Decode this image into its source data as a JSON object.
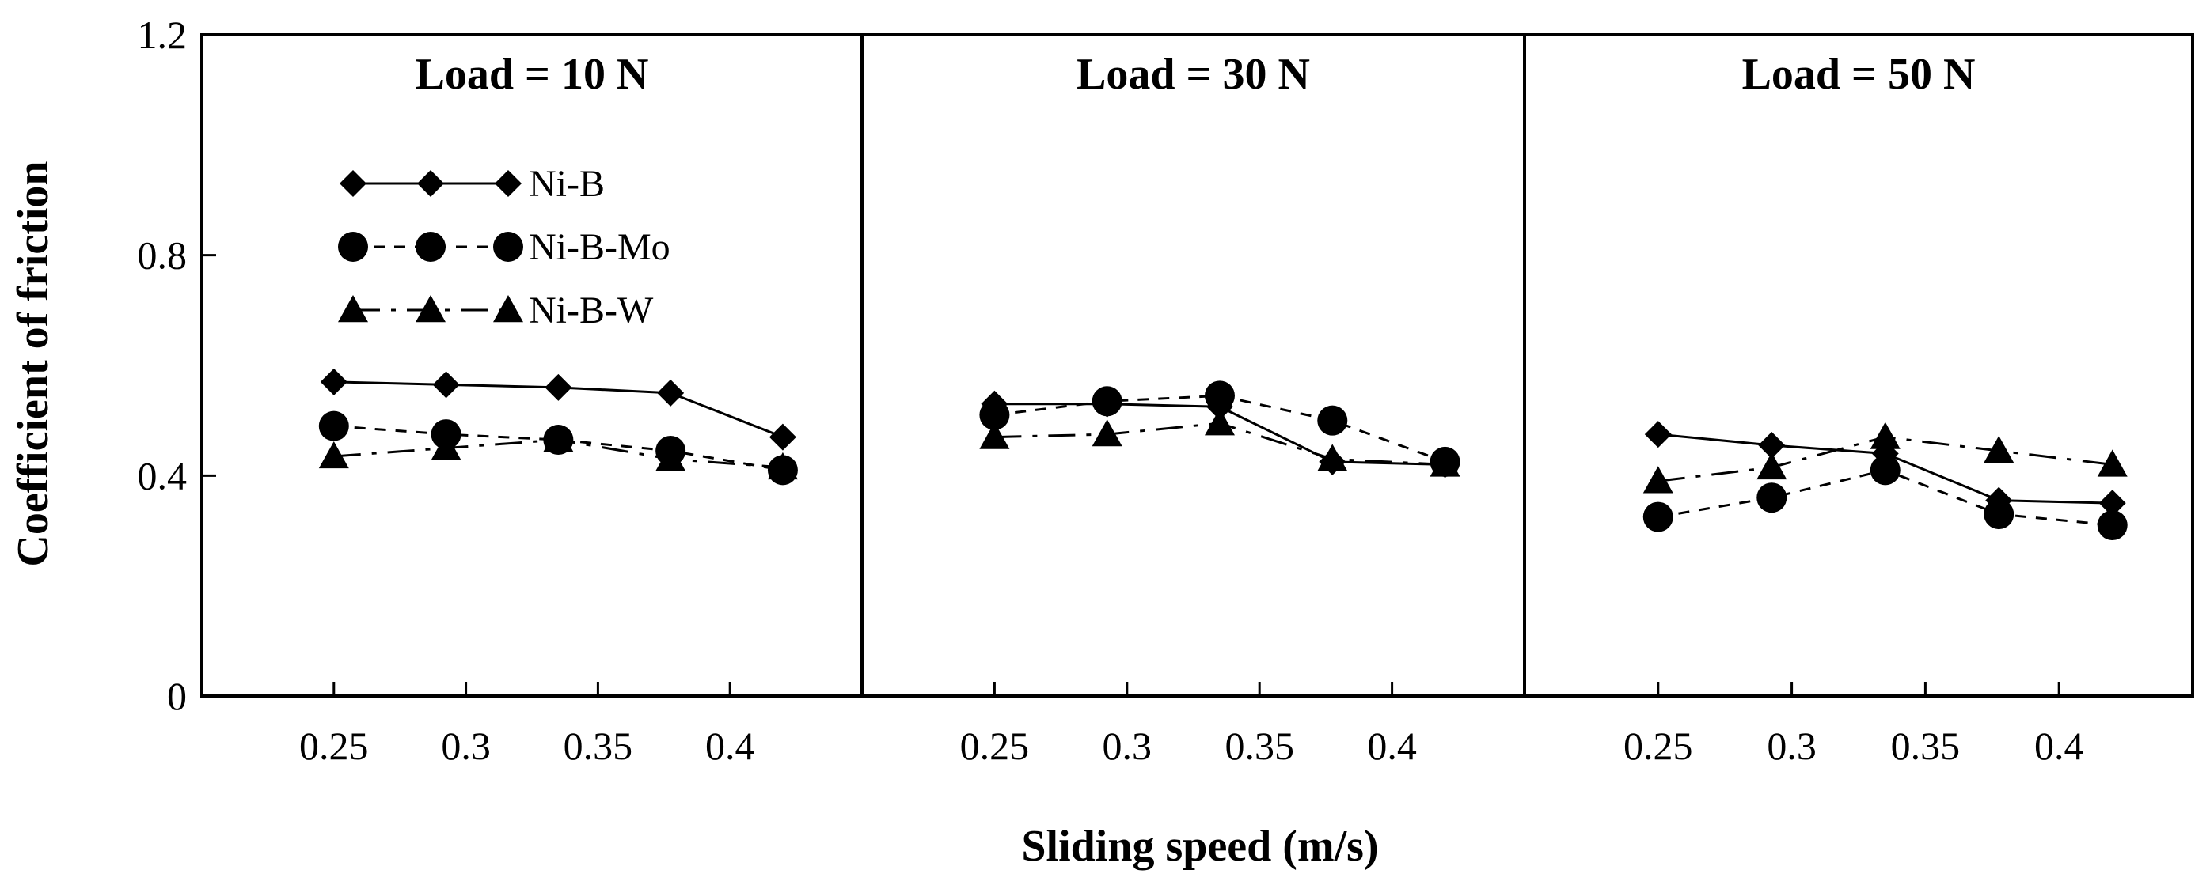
{
  "chart_data": {
    "type": "line",
    "ylabel": "Coefficient of friction",
    "xlabel": "Sliding speed (m/s)",
    "ylim": [
      0,
      1.2
    ],
    "yticks": [
      "0",
      "0.4",
      "0.8",
      "1.2"
    ],
    "xticks": [
      "0.25",
      "0.3",
      "0.35",
      "0.4"
    ],
    "legend": [
      "Ni-B",
      "Ni-B-Mo",
      "Ni-B-W"
    ],
    "panels": [
      {
        "title": "Load = 10 N",
        "x": [
          0.25,
          0.2925,
          0.335,
          0.3775,
          0.42
        ],
        "series": [
          {
            "name": "Ni-B",
            "values": [
              0.57,
              0.565,
              0.56,
              0.55,
              0.47
            ]
          },
          {
            "name": "Ni-B-Mo",
            "values": [
              0.49,
              0.475,
              0.465,
              0.445,
              0.41
            ]
          },
          {
            "name": "Ni-B-W",
            "values": [
              0.435,
              0.45,
              0.465,
              0.43,
              0.415
            ]
          }
        ]
      },
      {
        "title": "Load = 30 N",
        "x": [
          0.25,
          0.2925,
          0.335,
          0.3775,
          0.42
        ],
        "series": [
          {
            "name": "Ni-B",
            "values": [
              0.53,
              0.53,
              0.525,
              0.425,
              0.42
            ]
          },
          {
            "name": "Ni-B-Mo",
            "values": [
              0.51,
              0.535,
              0.545,
              0.5,
              0.425
            ]
          },
          {
            "name": "Ni-B-W",
            "values": [
              0.47,
              0.475,
              0.495,
              0.43,
              0.42
            ]
          }
        ]
      },
      {
        "title": "Load = 50 N",
        "x": [
          0.25,
          0.2925,
          0.335,
          0.3775,
          0.42
        ],
        "series": [
          {
            "name": "Ni-B",
            "values": [
              0.475,
              0.455,
              0.44,
              0.355,
              0.35
            ]
          },
          {
            "name": "Ni-B-Mo",
            "values": [
              0.325,
              0.36,
              0.41,
              0.33,
              0.31
            ]
          },
          {
            "name": "Ni-B-W",
            "values": [
              0.39,
              0.415,
              0.47,
              0.445,
              0.42
            ]
          }
        ]
      }
    ]
  }
}
